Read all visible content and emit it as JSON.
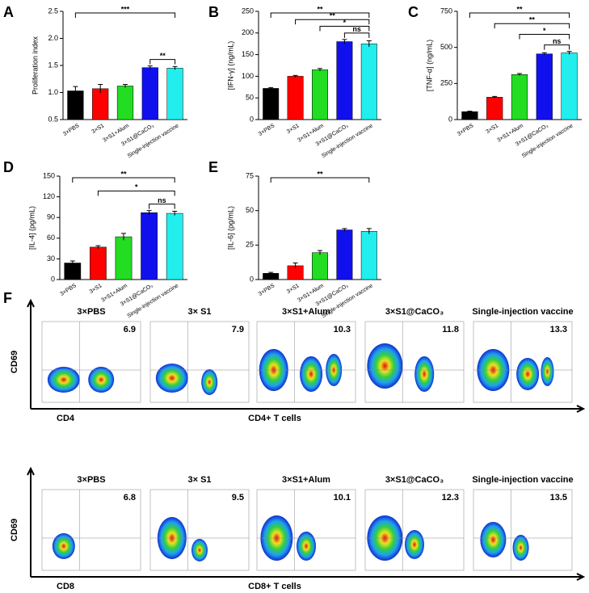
{
  "chart_data": [
    {
      "type": "bar",
      "label": "A",
      "y_label": "Proliferation index",
      "categories": [
        "3×PBS",
        "3×S1",
        "3×S1+Alum",
        "3×S1@CaCO₃",
        "Single-injection vaccine"
      ],
      "values": [
        1.03,
        1.07,
        1.12,
        1.46,
        1.45
      ],
      "errors": [
        0.08,
        0.08,
        0.03,
        0.03,
        0.03
      ],
      "colors": [
        "#000000",
        "#ff0000",
        "#22dd22",
        "#1010ee",
        "#22eeee"
      ],
      "ylim": [
        0.5,
        2.5
      ],
      "yticks": [
        0.5,
        {
          "value": 1,
          "label": "1.0"
        },
        1.5,
        {
          "value": 2,
          "label": "2.0"
        },
        2.5
      ],
      "annotations": [
        "***",
        "**"
      ]
    },
    {
      "type": "bar",
      "label": "B",
      "y_label": "[IFN-γ] (ng/mL)",
      "categories": [
        "3×PBS",
        "3×S1",
        "3×S1+Alum",
        "3×S1@CaCO₃",
        "Single-injection vaccine"
      ],
      "values": [
        72,
        100,
        115,
        180,
        175
      ],
      "errors": [
        2,
        2,
        3,
        5,
        7
      ],
      "colors": [
        "#000000",
        "#ff0000",
        "#22dd22",
        "#1010ee",
        "#22eeee"
      ],
      "ylim": [
        0,
        250
      ],
      "yticks": [
        0,
        50,
        100,
        150,
        200,
        250
      ],
      "annotations": [
        "**",
        "**",
        "*",
        "ns"
      ]
    },
    {
      "type": "bar",
      "label": "C",
      "y_label": "[TNF-α] (ng/mL)",
      "categories": [
        "3×PBS",
        "3×S1",
        "3×S1+Alum",
        "3×S1@CaCO₃",
        "Single-injection vaccine"
      ],
      "values": [
        55,
        155,
        312,
        455,
        462
      ],
      "errors": [
        3,
        5,
        7,
        8,
        10
      ],
      "colors": [
        "#000000",
        "#ff0000",
        "#22dd22",
        "#1010ee",
        "#22eeee"
      ],
      "ylim": [
        0,
        750
      ],
      "yticks": [
        0,
        250,
        500,
        750
      ],
      "annotations": [
        "**",
        "**",
        "*",
        "ns"
      ]
    },
    {
      "type": "bar",
      "label": "D",
      "y_label": "[IL-4] (pg/mL)",
      "categories": [
        "3×PBS",
        "3×S1",
        "3×S1+Alum",
        "3×S1@CaCO₃",
        "Single-injection vaccine"
      ],
      "values": [
        24,
        47,
        62,
        97,
        96
      ],
      "errors": [
        3,
        2,
        5,
        3,
        3
      ],
      "colors": [
        "#000000",
        "#ff0000",
        "#22dd22",
        "#1010ee",
        "#22eeee"
      ],
      "ylim": [
        0,
        150
      ],
      "yticks": [
        0,
        30,
        60,
        90,
        120,
        150
      ],
      "annotations": [
        "**",
        "*",
        "ns"
      ]
    },
    {
      "type": "bar",
      "label": "E",
      "y_label": "[IL-6] (pg/mL)",
      "categories": [
        "3×PBS",
        "3×S1",
        "3×S1+Alum",
        "3×S1@CaCO₃",
        "Single-injection vaccine"
      ],
      "values": [
        4.5,
        10,
        19.5,
        36,
        35
      ],
      "errors": [
        0.7,
        2,
        1.5,
        1,
        2
      ],
      "colors": [
        "#000000",
        "#ff0000",
        "#22dd22",
        "#1010ee",
        "#22eeee"
      ],
      "ylim": [
        0,
        75
      ],
      "yticks": [
        0,
        25,
        50,
        75
      ],
      "annotations": [
        "**"
      ]
    }
  ],
  "flow": {
    "label": "F",
    "rows": [
      {
        "y_label": "CD69",
        "x_label": "CD4",
        "population": "CD4+ T cells",
        "panels": [
          {
            "title": "3×PBS",
            "value": 6.9
          },
          {
            "title": "3× S1",
            "value": 7.9
          },
          {
            "title": "3×S1+Alum",
            "value": 10.3
          },
          {
            "title": "3×S1@CaCO₃",
            "value": 11.8
          },
          {
            "title": "Single-injection vaccine",
            "value": 13.3
          }
        ]
      },
      {
        "y_label": "CD69",
        "x_label": "CD8",
        "population": "CD8+ T cells",
        "panels": [
          {
            "title": "3×PBS",
            "value": 6.8
          },
          {
            "title": "3× S1",
            "value": 9.5
          },
          {
            "title": "3×S1+Alum",
            "value": 10.1
          },
          {
            "title": "3×S1@CaCO₃",
            "value": 12.3
          },
          {
            "title": "Single-injection vaccine",
            "value": 13.5
          }
        ]
      }
    ]
  }
}
